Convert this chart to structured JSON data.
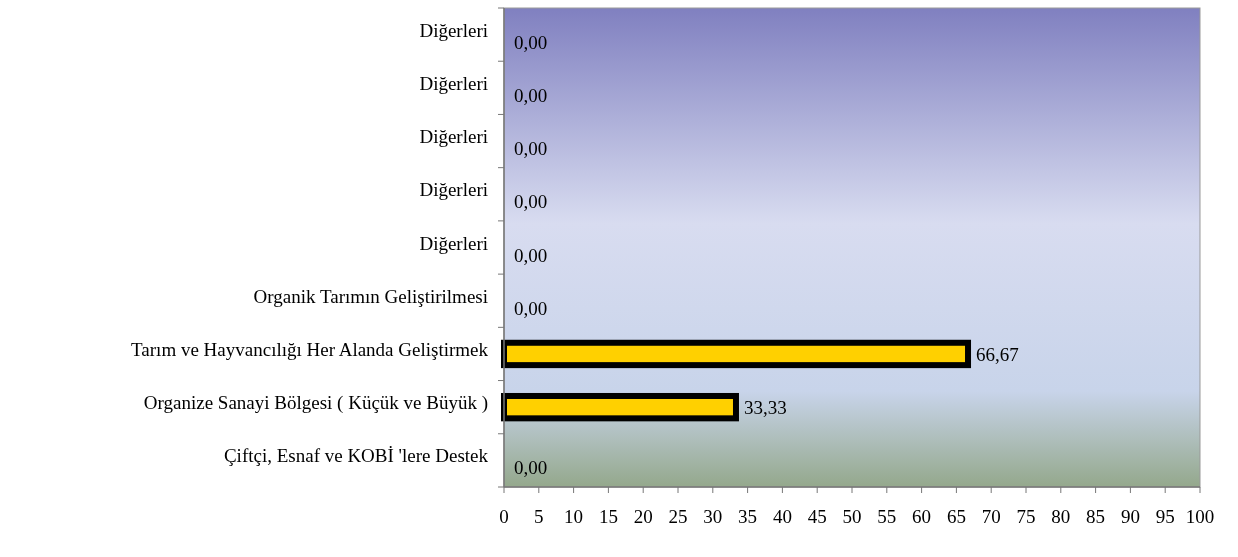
{
  "chart_data": {
    "type": "bar",
    "orientation": "horizontal",
    "categories": [
      "Diğerleri",
      "Diğerleri",
      "Diğerleri",
      "Diğerleri",
      "Diğerleri",
      "Organik Tarımın Geliştirilmesi",
      "Tarım ve Hayvancılığı Her Alanda Geliştirmek",
      "Organize Sanayi Bölgesi ( Küçük ve Büyük )",
      "Çiftçi, Esnaf ve KOBİ 'lere Destek"
    ],
    "values": [
      0,
      0,
      0,
      0,
      0,
      0,
      66.67,
      33.33,
      0
    ],
    "value_labels": [
      "0,00",
      "0,00",
      "0,00",
      "0,00",
      "0,00",
      "0,00",
      "66,67",
      "33,33",
      "0,00"
    ],
    "color": "#ffd000",
    "xlim": [
      0,
      100
    ],
    "xticks": [
      0,
      5,
      10,
      15,
      20,
      25,
      30,
      35,
      40,
      45,
      50,
      55,
      60,
      65,
      70,
      75,
      80,
      85,
      90,
      95,
      100
    ],
    "grid": false
  }
}
